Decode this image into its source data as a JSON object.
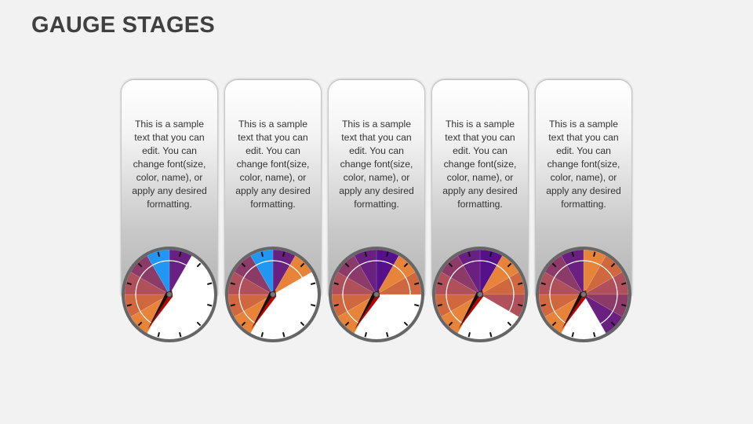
{
  "title": "GAUGE STAGES",
  "colors": {
    "title": "#404040",
    "rim": "#666666",
    "needle_red": "#c00000",
    "needle_black": "#111111"
  },
  "stages": [
    {
      "text": "This is a sample text that you can edit. You can change font(size, color, name), or apply any desired formatting.",
      "segments": [
        "#6a2080",
        null,
        null,
        null,
        null,
        null,
        null,
        "#e8843a",
        "#d0683f",
        "#b0505a",
        "#8c3a68",
        "#2196f3"
      ]
    },
    {
      "text": "This is a sample text that you can edit. You can change font(size, color, name), or apply any desired formatting.",
      "segments": [
        "#6a2080",
        "#e8843a",
        null,
        null,
        null,
        null,
        null,
        "#e8843a",
        "#d0683f",
        "#b0505a",
        "#8c3a68",
        "#2196f3"
      ]
    },
    {
      "text": "This is a sample text that you can edit. You can change font(size, color, name), or apply any desired formatting.",
      "segments": [
        "#55108a",
        "#e8843a",
        "#d0683f",
        null,
        null,
        null,
        null,
        "#e8843a",
        "#d0683f",
        "#b0505a",
        "#8c3a68",
        "#6a2080"
      ]
    },
    {
      "text": "This is a sample text that you can edit. You can change font(size, color, name), or apply any desired formatting.",
      "segments": [
        "#55108a",
        "#e8843a",
        "#d0683f",
        "#b0505a",
        null,
        null,
        null,
        "#e8843a",
        "#d0683f",
        "#b0505a",
        "#8c3a68",
        "#6a2080"
      ]
    },
    {
      "text": "This is a sample text that you can edit. You can change font(size, color, name), or apply any desired formatting.",
      "segments": [
        "#e8843a",
        "#d0683f",
        "#b0505a",
        "#8c3a68",
        "#6a2080",
        null,
        null,
        "#e8843a",
        "#d0683f",
        "#b0505a",
        "#8c3a68",
        "#6a2080"
      ]
    }
  ]
}
